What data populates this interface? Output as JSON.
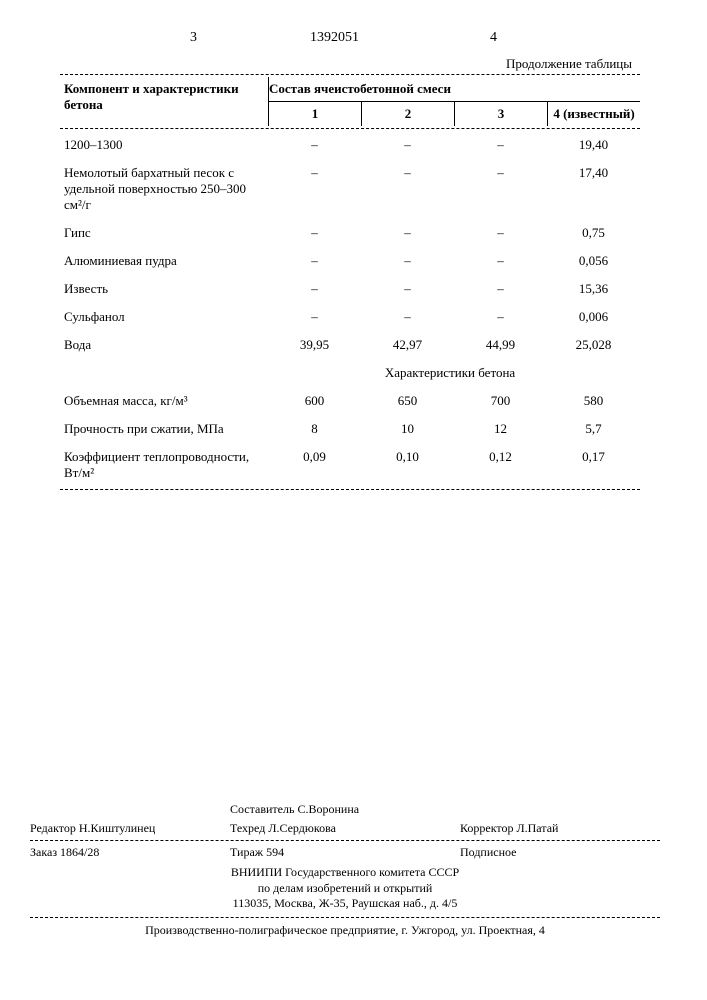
{
  "header": {
    "col_left_num": "3",
    "doc_num": "1392051",
    "col_right_num": "4",
    "continuation": "Продолжение таблицы"
  },
  "table": {
    "head_left": "Компонент и характеристики бетона",
    "head_right": "Состав ячеистобетонной смеси",
    "sub_headers": [
      "1",
      "2",
      "3",
      "4 (известный)"
    ],
    "rows_top": [
      {
        "label": "1200–1300",
        "c": [
          "–",
          "–",
          "–",
          "19,40"
        ]
      },
      {
        "label": "Немолотый бархатный песок с удельной поверхностью 250–300 см²/г",
        "c": [
          "–",
          "–",
          "–",
          "17,40"
        ]
      },
      {
        "label": "Гипс",
        "c": [
          "–",
          "–",
          "–",
          "0,75"
        ]
      },
      {
        "label": "Алюминиевая пудра",
        "c": [
          "–",
          "–",
          "–",
          "0,056"
        ]
      },
      {
        "label": "Известь",
        "c": [
          "–",
          "–",
          "–",
          "15,36"
        ]
      },
      {
        "label": "Сульфанол",
        "c": [
          "–",
          "–",
          "–",
          "0,006"
        ]
      },
      {
        "label": "Вода",
        "c": [
          "39,95",
          "42,97",
          "44,99",
          "25,028"
        ]
      }
    ],
    "mid_section": "Характеристики бетона",
    "rows_bottom": [
      {
        "label": "Объемная масса, кг/м³",
        "c": [
          "600",
          "650",
          "700",
          "580"
        ]
      },
      {
        "label": "Прочность при сжатии, МПа",
        "c": [
          "8",
          "10",
          "12",
          "5,7"
        ]
      },
      {
        "label": "Коэффициент теплопроводности, Вт/м²",
        "c": [
          "0,09",
          "0,10",
          "0,12",
          "0,17"
        ]
      }
    ]
  },
  "credits": {
    "editor": "Редактор Н.Киштулинец",
    "compiler": "Составитель С.Воронина",
    "techred": "Техред Л.Сердюкова",
    "corrector": "Корректор Л.Патай",
    "order": "Заказ 1864/28",
    "tirazh": "Тираж 594",
    "subscribe": "Подписное",
    "org1": "ВНИИПИ Государственного комитета СССР",
    "org2": "по делам изобретений и открытий",
    "org3": "113035, Москва, Ж-35, Раушская наб., д. 4/5",
    "imprint": "Производственно-полиграфическое предприятие, г. Ужгород, ул. Проектная, 4"
  }
}
